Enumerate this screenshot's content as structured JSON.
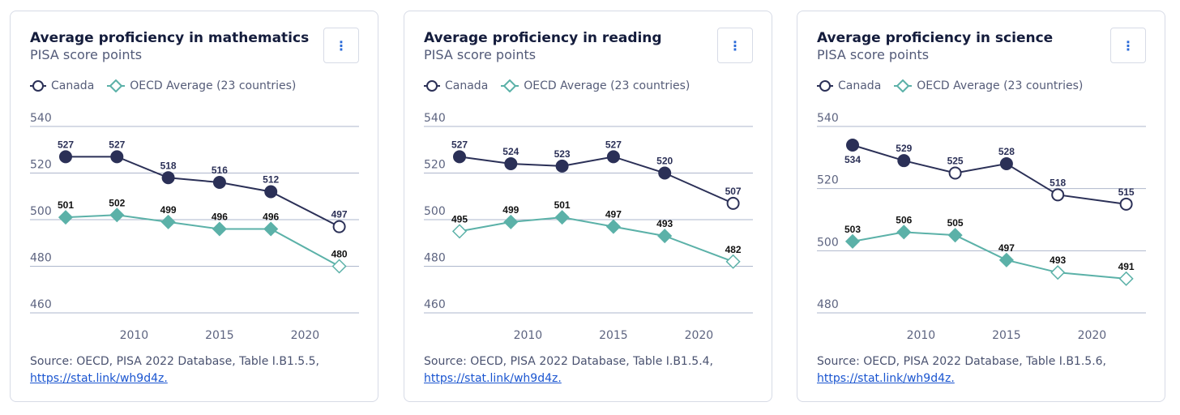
{
  "legend": {
    "canada": "Canada",
    "oecd": "OECD Average (23 countries)"
  },
  "menu_icon": "⋮",
  "colors": {
    "canada": "#2b3057",
    "oecd": "#5bb1a8",
    "grid": "#aeb7cc",
    "axis_text": "#5d6480"
  },
  "chart_data": [
    {
      "type": "line",
      "title": "Average proficiency in mathematics",
      "subtitle": "PISA score points",
      "x": [
        2006,
        2009,
        2012,
        2015,
        2018,
        2022
      ],
      "xticks": [
        "2010",
        "2015",
        "2020"
      ],
      "xlim": [
        2004,
        2024
      ],
      "ylim": [
        460,
        540
      ],
      "yticks": [
        "540",
        "520",
        "500",
        "480",
        "460"
      ],
      "series": [
        {
          "name": "Canada",
          "values": [
            527,
            527,
            518,
            516,
            512,
            497
          ],
          "hollow": [
            false,
            false,
            false,
            false,
            false,
            true
          ]
        },
        {
          "name": "OECD Average (23 countries)",
          "values": [
            501,
            502,
            499,
            496,
            496,
            480
          ],
          "hollow": [
            false,
            false,
            false,
            false,
            false,
            true
          ]
        }
      ],
      "source": "Source: OECD, PISA 2022 Database, Table I.B1.5.5,",
      "link": "https://stat.link/wh9d4z."
    },
    {
      "type": "line",
      "title": "Average proficiency in reading",
      "subtitle": "PISA score points",
      "x": [
        2006,
        2009,
        2012,
        2015,
        2018,
        2022
      ],
      "xticks": [
        "2010",
        "2015",
        "2020"
      ],
      "xlim": [
        2004,
        2024
      ],
      "ylim": [
        460,
        540
      ],
      "yticks": [
        "540",
        "520",
        "500",
        "480",
        "460"
      ],
      "series": [
        {
          "name": "Canada",
          "values": [
            527,
            524,
            523,
            527,
            520,
            507
          ],
          "hollow": [
            false,
            false,
            false,
            false,
            false,
            true
          ]
        },
        {
          "name": "OECD Average (23 countries)",
          "values": [
            495,
            499,
            501,
            497,
            493,
            482
          ],
          "hollow": [
            true,
            false,
            false,
            false,
            false,
            true
          ]
        }
      ],
      "source": "Source: OECD, PISA 2022 Database, Table I.B1.5.4,",
      "link": "https://stat.link/wh9d4z."
    },
    {
      "type": "line",
      "title": "Average proficiency in science",
      "subtitle": "PISA score points",
      "x": [
        2006,
        2009,
        2012,
        2015,
        2018,
        2022
      ],
      "xticks": [
        "2010",
        "2015",
        "2020"
      ],
      "xlim": [
        2004,
        2024
      ],
      "ylim": [
        480,
        540
      ],
      "yticks": [
        "540",
        "520",
        "500",
        "480"
      ],
      "series": [
        {
          "name": "Canada",
          "values": [
            534,
            529,
            525,
            528,
            518,
            515
          ],
          "hollow": [
            false,
            false,
            true,
            false,
            true,
            true
          ]
        },
        {
          "name": "OECD Average (23 countries)",
          "values": [
            503,
            506,
            505,
            497,
            493,
            491
          ],
          "hollow": [
            false,
            false,
            false,
            false,
            true,
            true
          ]
        }
      ],
      "source": "Source: OECD, PISA 2022 Database, Table I.B1.5.6,",
      "link": "https://stat.link/wh9d4z."
    }
  ]
}
